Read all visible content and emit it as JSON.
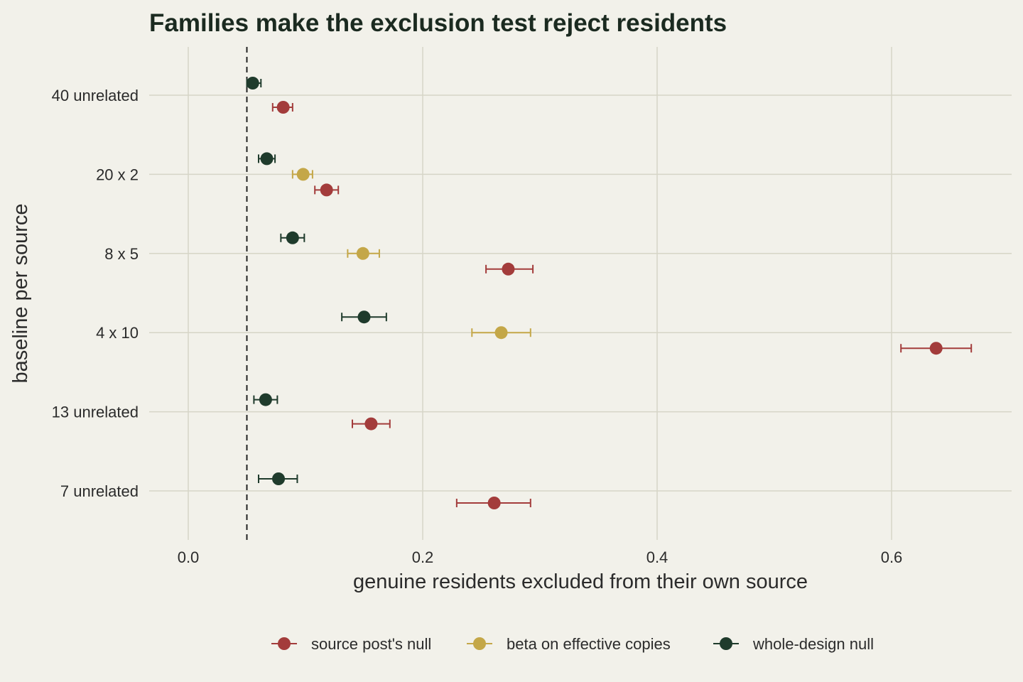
{
  "chart_data": {
    "type": "scatter",
    "title": "Families make the exclusion test reject residents",
    "xlabel": "genuine residents excluded from their own source",
    "ylabel": "baseline per source",
    "xlim": [
      -0.03,
      0.7
    ],
    "x_ticks": [
      "0.0",
      "0.2",
      "0.4",
      "0.6"
    ],
    "x_tick_values": [
      0.0,
      0.2,
      0.4,
      0.6
    ],
    "categories": [
      "40 unrelated",
      "20 x 2",
      "8 x 5",
      "4 x 10",
      "13 unrelated",
      "7 unrelated"
    ],
    "reference_line": 0.05,
    "grid": true,
    "legend_position": "bottom",
    "series": [
      {
        "name": "source post's null",
        "color": "#a33c3b",
        "points": [
          {
            "category": "40 unrelated",
            "x": 0.081,
            "lo": 0.072,
            "hi": 0.089
          },
          {
            "category": "20 x 2",
            "x": 0.118,
            "lo": 0.108,
            "hi": 0.128
          },
          {
            "category": "8 x 5",
            "x": 0.273,
            "lo": 0.254,
            "hi": 0.294
          },
          {
            "category": "4 x 10",
            "x": 0.638,
            "lo": 0.608,
            "hi": 0.668
          },
          {
            "category": "13 unrelated",
            "x": 0.156,
            "lo": 0.14,
            "hi": 0.172
          },
          {
            "category": "7 unrelated",
            "x": 0.261,
            "lo": 0.229,
            "hi": 0.292
          }
        ]
      },
      {
        "name": "beta on effective copies",
        "color": "#c4a748",
        "points": [
          {
            "category": "20 x 2",
            "x": 0.098,
            "lo": 0.089,
            "hi": 0.106
          },
          {
            "category": "8 x 5",
            "x": 0.149,
            "lo": 0.136,
            "hi": 0.163
          },
          {
            "category": "4 x 10",
            "x": 0.267,
            "lo": 0.242,
            "hi": 0.292
          }
        ]
      },
      {
        "name": "whole-design null",
        "color": "#1f3b2c",
        "points": [
          {
            "category": "40 unrelated",
            "x": 0.055,
            "lo": 0.05,
            "hi": 0.062
          },
          {
            "category": "20 x 2",
            "x": 0.067,
            "lo": 0.06,
            "hi": 0.074
          },
          {
            "category": "8 x 5",
            "x": 0.089,
            "lo": 0.079,
            "hi": 0.099
          },
          {
            "category": "4 x 10",
            "x": 0.15,
            "lo": 0.131,
            "hi": 0.169
          },
          {
            "category": "13 unrelated",
            "x": 0.066,
            "lo": 0.056,
            "hi": 0.076
          },
          {
            "category": "7 unrelated",
            "x": 0.077,
            "lo": 0.06,
            "hi": 0.093
          }
        ]
      }
    ]
  }
}
